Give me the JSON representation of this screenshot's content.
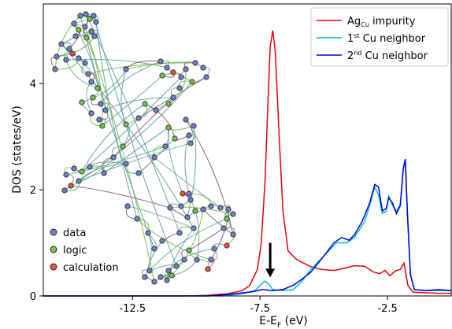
{
  "chart_data": {
    "type": "line",
    "xlabel": "E-E",
    "xlabel_sub": "F",
    "xlabel_unit": " (eV)",
    "ylabel": "DOS (states/eV)",
    "xlim": [
      -16,
      0
    ],
    "ylim": [
      0,
      5.5
    ],
    "x_ticks": [
      -12.5,
      -7.5,
      -2.5
    ],
    "x_tick_labels": [
      "-12.5",
      "-7.5",
      "-2.5"
    ],
    "y_ticks": [
      0,
      2,
      4
    ],
    "y_tick_labels": [
      "0",
      "2",
      "4"
    ],
    "legend_position": "top-right",
    "series": [
      {
        "name": "Ag",
        "name_sub": "Cu",
        "name_tail": " impurity",
        "color": "#e8000b",
        "points": [
          [
            -16,
            0
          ],
          [
            -10.5,
            0
          ],
          [
            -9.6,
            0.01
          ],
          [
            -8.8,
            0.04
          ],
          [
            -8.2,
            0.1
          ],
          [
            -7.9,
            0.2
          ],
          [
            -7.6,
            0.5
          ],
          [
            -7.45,
            1.0
          ],
          [
            -7.3,
            2.2
          ],
          [
            -7.2,
            3.5
          ],
          [
            -7.1,
            4.7
          ],
          [
            -7.0,
            5.0
          ],
          [
            -6.9,
            4.6
          ],
          [
            -6.75,
            3.0
          ],
          [
            -6.6,
            1.6
          ],
          [
            -6.4,
            0.85
          ],
          [
            -6.1,
            0.7
          ],
          [
            -5.8,
            0.62
          ],
          [
            -5.5,
            0.55
          ],
          [
            -5.1,
            0.5
          ],
          [
            -4.6,
            0.48
          ],
          [
            -4.2,
            0.52
          ],
          [
            -3.8,
            0.57
          ],
          [
            -3.4,
            0.56
          ],
          [
            -3.05,
            0.45
          ],
          [
            -2.8,
            0.42
          ],
          [
            -2.6,
            0.48
          ],
          [
            -2.4,
            0.38
          ],
          [
            -2.2,
            0.47
          ],
          [
            -2.0,
            0.5
          ],
          [
            -1.85,
            0.62
          ],
          [
            -1.7,
            0.2
          ],
          [
            -1.5,
            0.07
          ],
          [
            -1.0,
            0.06
          ],
          [
            -0.5,
            0.05
          ],
          [
            0,
            0.05
          ]
        ]
      },
      {
        "name": "1",
        "name_sup": "st",
        "name_tail": " Cu neighbor",
        "color": "#00bfc4",
        "points": [
          [
            -16,
            0
          ],
          [
            -9.0,
            0
          ],
          [
            -8.2,
            0.04
          ],
          [
            -7.7,
            0.1
          ],
          [
            -7.5,
            0.2
          ],
          [
            -7.3,
            0.28
          ],
          [
            -7.15,
            0.22
          ],
          [
            -7.0,
            0.12
          ],
          [
            -6.6,
            0.1
          ],
          [
            -6.2,
            0.12
          ],
          [
            -5.9,
            0.25
          ],
          [
            -5.5,
            0.5
          ],
          [
            -5.0,
            0.75
          ],
          [
            -4.5,
            1.0
          ],
          [
            -4.1,
            1.0
          ],
          [
            -3.8,
            1.1
          ],
          [
            -3.4,
            1.4
          ],
          [
            -3.2,
            1.7
          ],
          [
            -3.0,
            2.05
          ],
          [
            -2.85,
            1.9
          ],
          [
            -2.7,
            1.55
          ],
          [
            -2.55,
            1.6
          ],
          [
            -2.45,
            1.88
          ],
          [
            -2.3,
            1.7
          ],
          [
            -2.15,
            1.6
          ],
          [
            -2.0,
            1.72
          ],
          [
            -1.88,
            2.4
          ],
          [
            -1.8,
            2.55
          ],
          [
            -1.72,
            1.55
          ],
          [
            -1.6,
            0.4
          ],
          [
            -1.45,
            0.12
          ],
          [
            -1.0,
            0.1
          ],
          [
            -0.5,
            0.1
          ],
          [
            0,
            0.1
          ]
        ]
      },
      {
        "name": "2",
        "name_sup": "nd",
        "name_tail": " Cu neighbor",
        "color": "#0000dd",
        "points": [
          [
            -16,
            0
          ],
          [
            -9.5,
            0
          ],
          [
            -8.5,
            0.04
          ],
          [
            -7.8,
            0.08
          ],
          [
            -7.4,
            0.12
          ],
          [
            -7.0,
            0.1
          ],
          [
            -6.6,
            0.12
          ],
          [
            -6.2,
            0.2
          ],
          [
            -5.9,
            0.3
          ],
          [
            -5.5,
            0.45
          ],
          [
            -5.0,
            0.75
          ],
          [
            -4.6,
            1.0
          ],
          [
            -4.3,
            1.1
          ],
          [
            -4.0,
            1.05
          ],
          [
            -3.8,
            1.15
          ],
          [
            -3.5,
            1.4
          ],
          [
            -3.2,
            1.75
          ],
          [
            -3.0,
            2.1
          ],
          [
            -2.85,
            2.05
          ],
          [
            -2.7,
            1.6
          ],
          [
            -2.55,
            1.65
          ],
          [
            -2.45,
            1.85
          ],
          [
            -2.3,
            1.75
          ],
          [
            -2.15,
            1.55
          ],
          [
            -2.0,
            1.7
          ],
          [
            -1.88,
            2.4
          ],
          [
            -1.8,
            2.58
          ],
          [
            -1.72,
            1.6
          ],
          [
            -1.6,
            0.4
          ],
          [
            -1.45,
            0.12
          ],
          [
            -1.0,
            0.1
          ],
          [
            -0.5,
            0.12
          ],
          [
            0,
            0.1
          ]
        ]
      }
    ],
    "arrow": {
      "x": -7.1,
      "y_from": 1.0,
      "y_to": 0.35
    },
    "inset_legend": [
      {
        "label": "data",
        "color": "#6e7fc8"
      },
      {
        "label": "logic",
        "color": "#6ec24a"
      },
      {
        "label": "calculation",
        "color": "#e0553b"
      }
    ]
  }
}
